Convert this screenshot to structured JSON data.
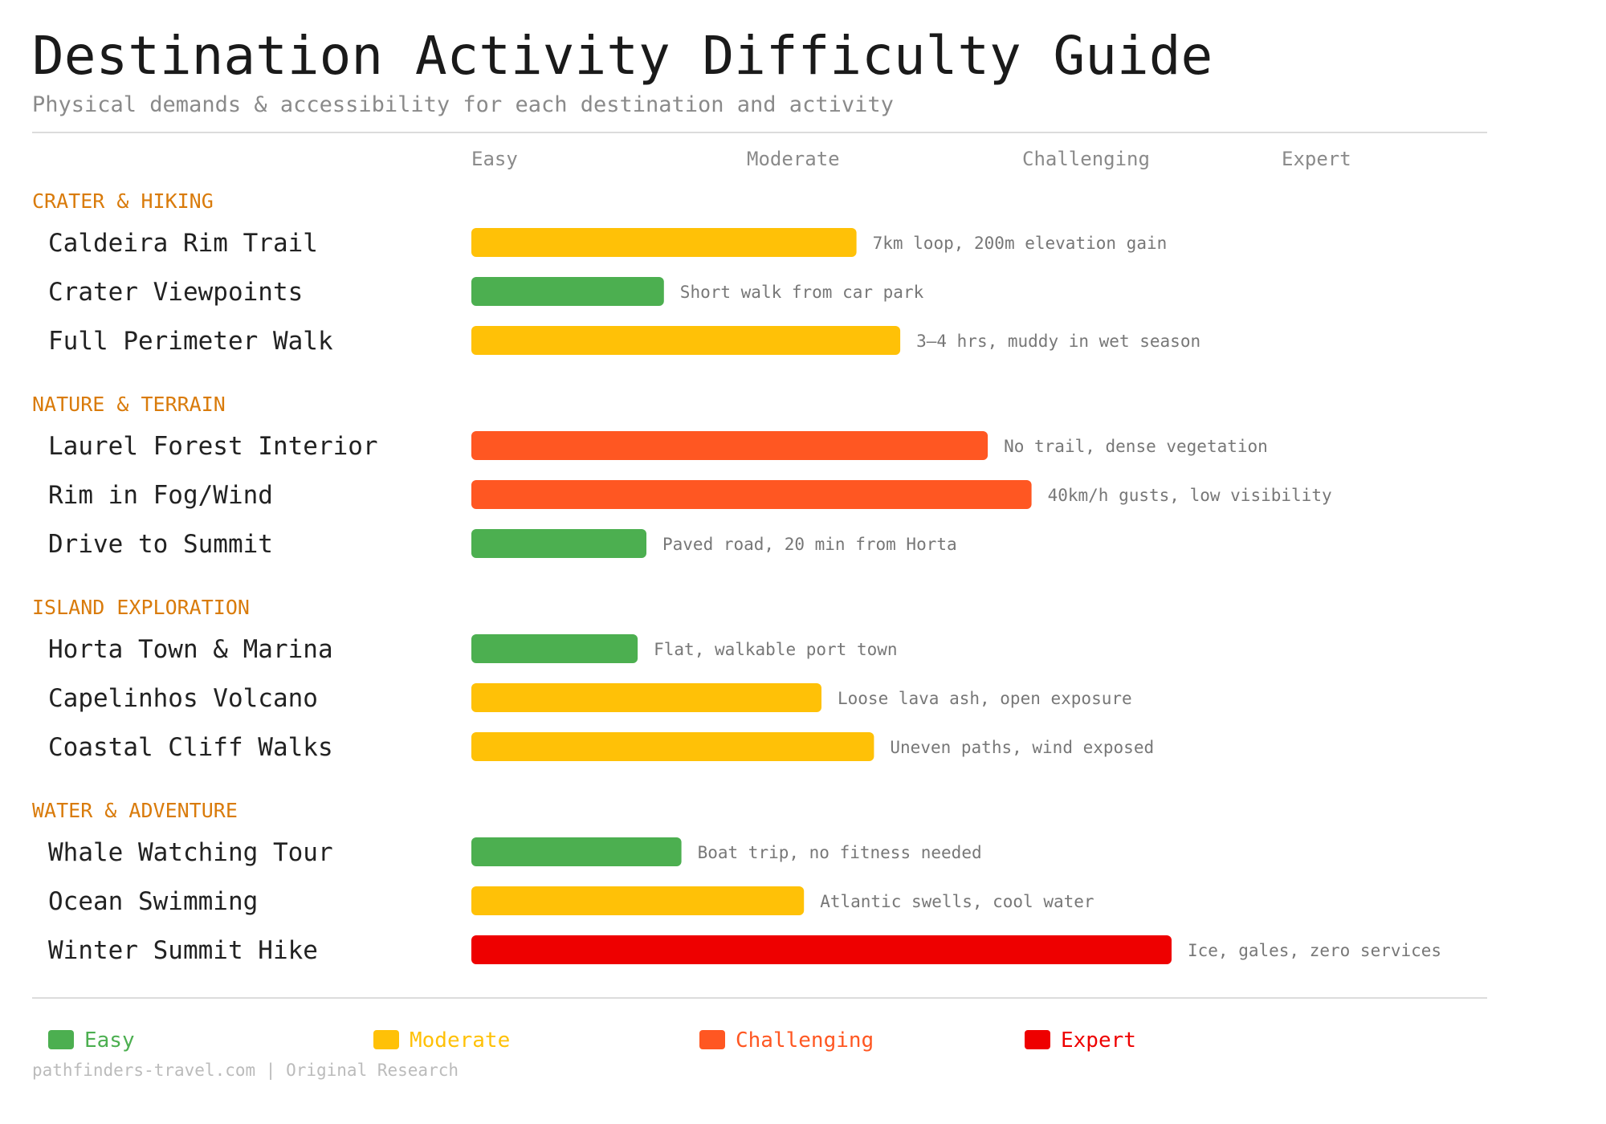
{
  "title": "Destination Activity Difficulty Guide",
  "subtitle": "Physical demands & accessibility for each destination and activity",
  "source": "pathfinders-travel.com | Original Research",
  "colors": {
    "Easy": "#4caf50",
    "Moderate": "#ffc107",
    "Challenging": "#ff5722",
    "Expert": "#ee0000",
    "category": "#d97b0b"
  },
  "chart_data": {
    "type": "bar",
    "orientation": "horizontal",
    "title": "Destination Activity Difficulty Guide",
    "subtitle": "Physical demands & accessibility for each destination and activity",
    "scale_labels": [
      "Easy",
      "Moderate",
      "Challenging",
      "Expert"
    ],
    "xlim": [
      0,
      100
    ],
    "grid": false,
    "legend_position": "bottom",
    "legend": [
      {
        "label": "Easy",
        "color": "#4caf50"
      },
      {
        "label": "Moderate",
        "color": "#ffc107"
      },
      {
        "label": "Challenging",
        "color": "#ff5722"
      },
      {
        "label": "Expert",
        "color": "#ee0000"
      }
    ],
    "groups": [
      {
        "name": "CRATER & HIKING",
        "items": [
          {
            "label": "Caldeira Rim Trail",
            "value": 44,
            "level": "Moderate",
            "note": "7km loop, 200m elevation gain"
          },
          {
            "label": "Crater Viewpoints",
            "value": 22,
            "level": "Easy",
            "note": "Short walk from car park"
          },
          {
            "label": "Full Perimeter Walk",
            "value": 49,
            "level": "Moderate",
            "note": "3–4 hrs, muddy in wet season"
          }
        ]
      },
      {
        "name": "NATURE & TERRAIN",
        "items": [
          {
            "label": "Laurel Forest Interior",
            "value": 59,
            "level": "Challenging",
            "note": "No trail, dense vegetation"
          },
          {
            "label": "Rim in Fog/Wind",
            "value": 64,
            "level": "Challenging",
            "note": "40km/h gusts, low visibility"
          },
          {
            "label": "Drive to Summit",
            "value": 20,
            "level": "Easy",
            "note": "Paved road, 20 min from Horta"
          }
        ]
      },
      {
        "name": "ISLAND EXPLORATION",
        "items": [
          {
            "label": "Horta Town & Marina",
            "value": 19,
            "level": "Easy",
            "note": "Flat, walkable port town"
          },
          {
            "label": "Capelinhos Volcano",
            "value": 40,
            "level": "Moderate",
            "note": "Loose lava ash, open exposure"
          },
          {
            "label": "Coastal Cliff Walks",
            "value": 46,
            "level": "Moderate",
            "note": "Uneven paths, wind exposed"
          }
        ]
      },
      {
        "name": "WATER & ADVENTURE",
        "items": [
          {
            "label": "Whale Watching Tour",
            "value": 24,
            "level": "Easy",
            "note": "Boat trip, no fitness needed"
          },
          {
            "label": "Ocean Swimming",
            "value": 38,
            "level": "Moderate",
            "note": "Atlantic swells, cool water"
          },
          {
            "label": "Winter Summit Hike",
            "value": 80,
            "level": "Expert",
            "note": "Ice, gales, zero services"
          }
        ]
      }
    ]
  }
}
